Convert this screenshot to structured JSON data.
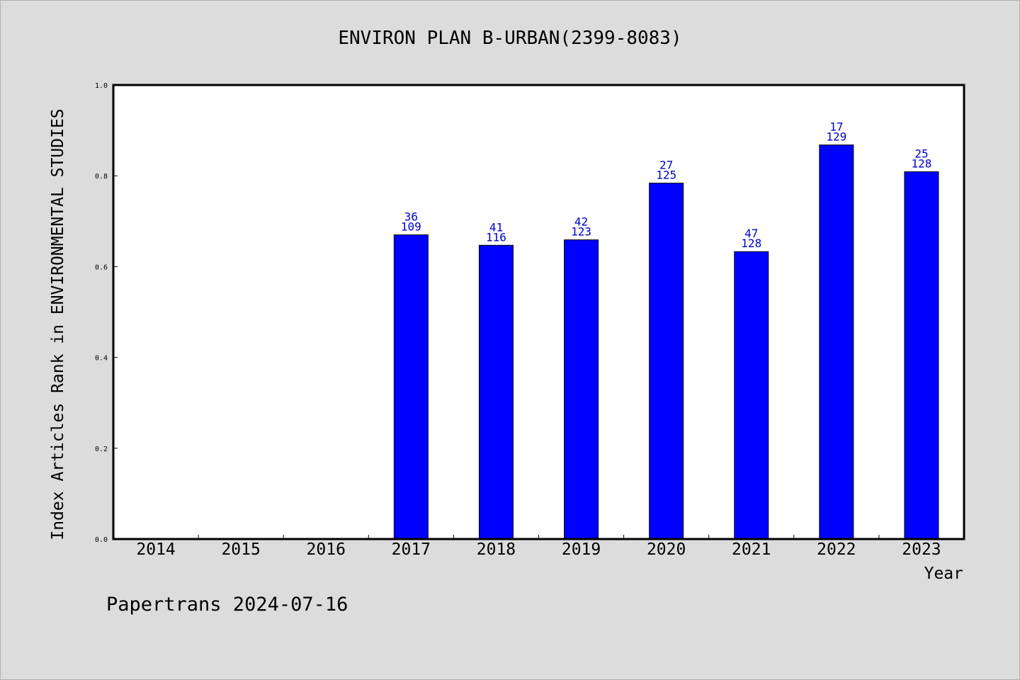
{
  "chart_data": {
    "type": "bar",
    "title": "ENVIRON PLAN B-URBAN(2399-8083)",
    "xlabel": "Year",
    "ylabel": "Index Articles Rank in ENVIRONMENTAL STUDIES",
    "ylim": [
      0,
      1.0
    ],
    "yticks": [
      "0.0",
      "0.2",
      "0.4",
      "0.6",
      "0.8",
      "1.0"
    ],
    "categories": [
      "2014",
      "2015",
      "2016",
      "2017",
      "2018",
      "2019",
      "2020",
      "2021",
      "2022",
      "2023"
    ],
    "values": [
      null,
      null,
      null,
      0.67,
      0.647,
      0.659,
      0.784,
      0.633,
      0.868,
      0.809
    ],
    "rank": [
      null,
      null,
      null,
      "36",
      "41",
      "42",
      "27",
      "47",
      "17",
      "25"
    ],
    "total": [
      null,
      null,
      null,
      "109",
      "116",
      "123",
      "125",
      "128",
      "129",
      "128"
    ],
    "grid": false,
    "bar_color": "#0000ff",
    "label_color": "#0000cc"
  },
  "footer": {
    "text": "Papertrans 2024-07-16"
  }
}
